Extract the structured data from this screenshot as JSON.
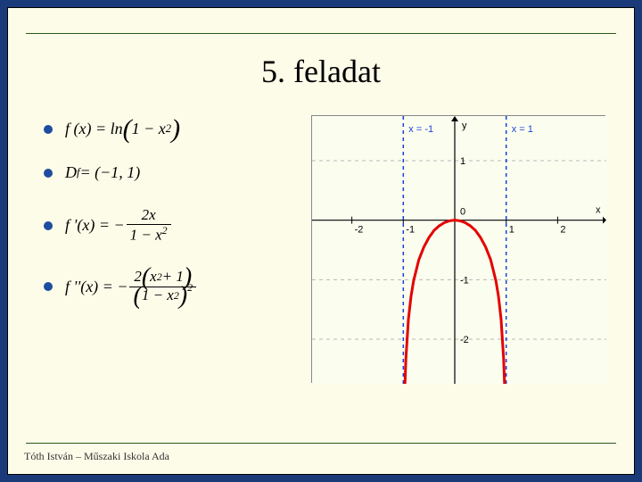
{
  "title": "5. feladat",
  "footer": "Tóth István – Műszaki Iskola Ada",
  "formulas": {
    "f": {
      "lhs": "f (x) = ln",
      "inner": "1 − x",
      "exp": "2"
    },
    "domain": {
      "text": "D",
      "sub": "f",
      "rhs": " = (−1, 1)"
    },
    "fprime": {
      "lhs": "f '(x) = −",
      "num": "2x",
      "den_a": "1 − x",
      "den_exp": "2"
    },
    "fsecond": {
      "lhs": "f ''(x) = −",
      "num_a": "2",
      "num_b": "x",
      "num_exp1": "2",
      "num_c": " + 1",
      "den_a": "1 − x",
      "den_exp": "2",
      "outer_exp": "2"
    }
  },
  "chart": {
    "type": "line",
    "background_color": "#fbfeef",
    "xlim": [
      -2.6,
      2.6
    ],
    "ylim": [
      -2.6,
      1.6
    ],
    "xticks": [
      -2,
      -1,
      0,
      1,
      2
    ],
    "yticks": [
      -2,
      -1,
      1
    ],
    "origin_label": "0",
    "xlabel": "x",
    "ylabel": "y",
    "axis_color": "#000000",
    "grid_color": "#b8b8b8",
    "grid_dash": "4,4",
    "asymptotes": [
      {
        "x": -1,
        "label": "x = -1",
        "color": "#1a3fd8"
      },
      {
        "x": 1,
        "label": "x = 1",
        "color": "#1a3fd8"
      }
    ],
    "curve": {
      "color": "#e40000",
      "width": 3,
      "points": [
        [
          -0.99,
          -3.0
        ],
        [
          -0.97,
          -2.8
        ],
        [
          -0.95,
          -2.33
        ],
        [
          -0.9,
          -1.66
        ],
        [
          -0.85,
          -1.28
        ],
        [
          -0.8,
          -1.02
        ],
        [
          -0.7,
          -0.67
        ],
        [
          -0.6,
          -0.45
        ],
        [
          -0.5,
          -0.29
        ],
        [
          -0.4,
          -0.17
        ],
        [
          -0.3,
          -0.094
        ],
        [
          -0.2,
          -0.041
        ],
        [
          -0.1,
          -0.01
        ],
        [
          0,
          0
        ],
        [
          0.1,
          -0.01
        ],
        [
          0.2,
          -0.041
        ],
        [
          0.3,
          -0.094
        ],
        [
          0.4,
          -0.17
        ],
        [
          0.5,
          -0.29
        ],
        [
          0.6,
          -0.45
        ],
        [
          0.7,
          -0.67
        ],
        [
          0.8,
          -1.02
        ],
        [
          0.85,
          -1.28
        ],
        [
          0.9,
          -1.66
        ],
        [
          0.95,
          -2.33
        ],
        [
          0.97,
          -2.8
        ],
        [
          0.99,
          -3.0
        ]
      ]
    },
    "tick_fontsize": 11,
    "label_color": "#000000"
  }
}
